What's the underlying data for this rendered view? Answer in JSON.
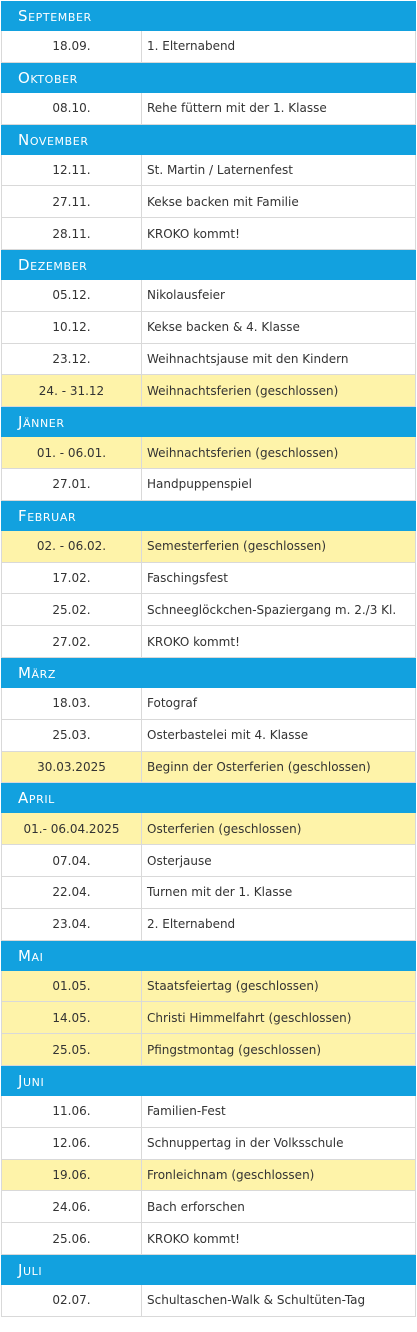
{
  "colors": {
    "header": "#12a1df",
    "closed_row": "#fef3a9",
    "border": "#d9d9d9"
  },
  "months": [
    {
      "name": "September",
      "events": [
        {
          "date": "18.09.",
          "title": "1. Elternabend",
          "closed": false
        }
      ]
    },
    {
      "name": "Oktober",
      "events": [
        {
          "date": "08.10.",
          "title": "Rehe füttern mit der 1. Klasse",
          "closed": false
        }
      ]
    },
    {
      "name": "November",
      "events": [
        {
          "date": "12.11.",
          "title": "St. Martin / Laternenfest",
          "closed": false
        },
        {
          "date": "27.11.",
          "title": "Kekse backen mit Familie",
          "closed": false
        },
        {
          "date": "28.11.",
          "title": "KROKO kommt!",
          "closed": false
        }
      ]
    },
    {
      "name": "Dezember",
      "events": [
        {
          "date": "05.12.",
          "title": "Nikolausfeier",
          "closed": false
        },
        {
          "date": "10.12.",
          "title": "Kekse backen & 4. Klasse",
          "closed": false
        },
        {
          "date": "23.12.",
          "title": "Weihnachtsjause mit den Kindern",
          "closed": false
        },
        {
          "date": "24. - 31.12",
          "title": "Weihnachtsferien (geschlossen)",
          "closed": true
        }
      ]
    },
    {
      "name": "Jänner",
      "events": [
        {
          "date": "01. - 06.01.",
          "title": "Weihnachtsferien (geschlossen)",
          "closed": true
        },
        {
          "date": "27.01.",
          "title": "Handpuppenspiel",
          "closed": false
        }
      ]
    },
    {
      "name": "Februar",
      "events": [
        {
          "date": "02. - 06.02.",
          "title": "Semesterferien (geschlossen)",
          "closed": true
        },
        {
          "date": "17.02.",
          "title": "Faschingsfest",
          "closed": false
        },
        {
          "date": "25.02.",
          "title": "Schneeglöckchen-Spaziergang m. 2./3 Kl.",
          "closed": false
        },
        {
          "date": "27.02.",
          "title": "KROKO kommt!",
          "closed": false
        }
      ]
    },
    {
      "name": "März",
      "events": [
        {
          "date": "18.03.",
          "title": "Fotograf",
          "closed": false
        },
        {
          "date": "25.03.",
          "title": "Osterbastelei mit 4. Klasse",
          "closed": false
        },
        {
          "date": "30.03.2025",
          "title": "Beginn der Osterferien (geschlossen)",
          "closed": true
        }
      ]
    },
    {
      "name": "April",
      "events": [
        {
          "date": "01.- 06.04.2025",
          "title": "Osterferien (geschlossen)",
          "closed": true
        },
        {
          "date": "07.04.",
          "title": "Osterjause",
          "closed": false
        },
        {
          "date": "22.04.",
          "title": "Turnen mit der 1. Klasse",
          "closed": false
        },
        {
          "date": "23.04.",
          "title": "2. Elternabend",
          "closed": false
        }
      ]
    },
    {
      "name": "Mai",
      "events": [
        {
          "date": "01.05.",
          "title": "Staatsfeiertag (geschlossen)",
          "closed": true
        },
        {
          "date": "14.05.",
          "title": "Christi Himmelfahrt (geschlossen)",
          "closed": true
        },
        {
          "date": "25.05.",
          "title": "Pfingstmontag (geschlossen)",
          "closed": true
        }
      ]
    },
    {
      "name": "Juni",
      "events": [
        {
          "date": "11.06.",
          "title": "Familien-Fest",
          "closed": false
        },
        {
          "date": "12.06.",
          "title": "Schnuppertag in der Volksschule",
          "closed": false
        },
        {
          "date": "19.06.",
          "title": "Fronleichnam (geschlossen)",
          "closed": true
        },
        {
          "date": "24.06.",
          "title": "Bach erforschen",
          "closed": false
        },
        {
          "date": "25.06.",
          "title": "KROKO kommt!",
          "closed": false
        }
      ]
    },
    {
      "name": "Juli",
      "events": [
        {
          "date": "02.07.",
          "title": "Schultaschen-Walk & Schultüten-Tag",
          "closed": false
        }
      ]
    }
  ]
}
